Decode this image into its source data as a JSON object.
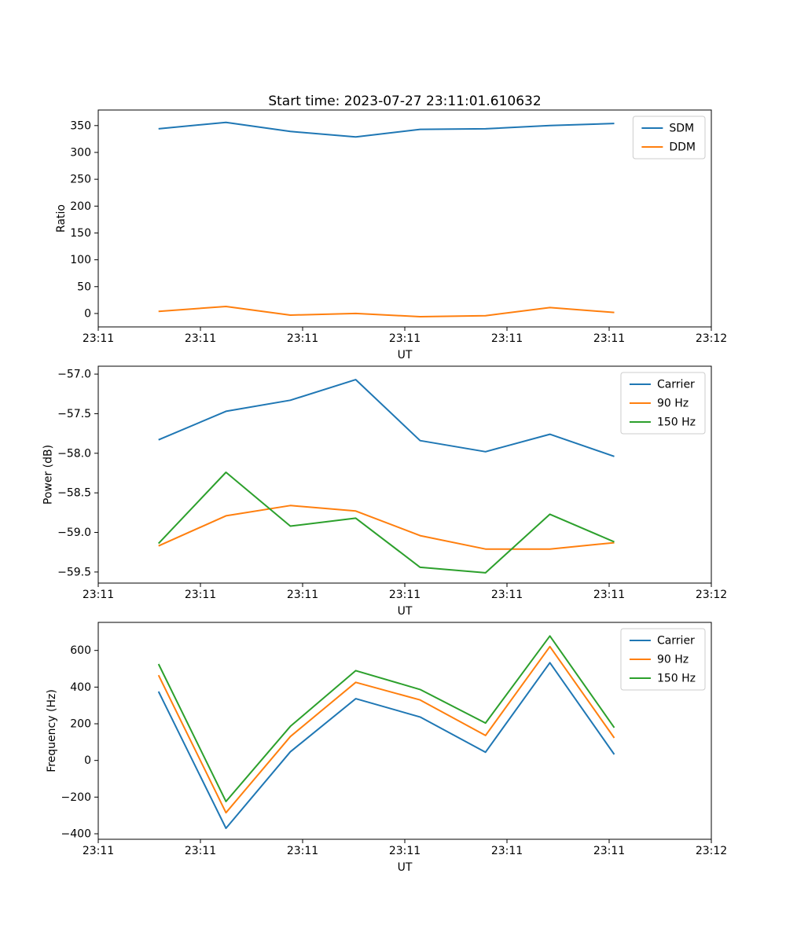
{
  "figure": {
    "title": "Start time: 2023-07-27 23:11:01.610632",
    "background": "#ffffff",
    "text_color": "#000000",
    "legend_edge_color": "#cccccc"
  },
  "chart_data": [
    {
      "type": "line",
      "title": "Start time: 2023-07-27 23:11:01.610632",
      "xlabel": "UT",
      "ylabel": "Ratio",
      "x_seconds": [
        5.9,
        12.5,
        18.8,
        25.2,
        31.5,
        37.9,
        44.2,
        50.5
      ],
      "xlim_seconds": [
        0,
        60
      ],
      "ylim": [
        -25,
        379
      ],
      "grid": false,
      "xticks": {
        "seconds": [
          0,
          10,
          20,
          30,
          40,
          50,
          60
        ],
        "labels": [
          "23:11",
          "23:11",
          "23:11",
          "23:11",
          "23:11",
          "23:11",
          "23:12"
        ]
      },
      "yticks": {
        "values": [
          0,
          50,
          100,
          150,
          200,
          250,
          300,
          350
        ],
        "labels": [
          "0",
          "50",
          "100",
          "150",
          "200",
          "250",
          "300",
          "350"
        ]
      },
      "legend": {
        "position": "upper right",
        "entries": [
          "SDM",
          "DDM"
        ]
      },
      "series": [
        {
          "name": "SDM",
          "color": "#1f77b4",
          "values": [
            344,
            356,
            339,
            329,
            343,
            344,
            350,
            354
          ]
        },
        {
          "name": "DDM",
          "color": "#ff7f0e",
          "values": [
            4,
            13,
            -3,
            0,
            -6,
            -4,
            11,
            2
          ]
        }
      ]
    },
    {
      "type": "line",
      "title": "",
      "xlabel": "UT",
      "ylabel": "Power (dB)",
      "x_seconds": [
        5.9,
        12.5,
        18.8,
        25.2,
        31.5,
        37.9,
        44.2,
        50.5
      ],
      "xlim_seconds": [
        0,
        60
      ],
      "ylim": [
        -59.64,
        -56.9
      ],
      "grid": false,
      "xticks": {
        "seconds": [
          0,
          10,
          20,
          30,
          40,
          50,
          60
        ],
        "labels": [
          "23:11",
          "23:11",
          "23:11",
          "23:11",
          "23:11",
          "23:11",
          "23:12"
        ]
      },
      "yticks": {
        "values": [
          -57.0,
          -57.5,
          -58.0,
          -58.5,
          -59.0,
          -59.5
        ],
        "labels": [
          "−57.0",
          "−57.5",
          "−58.0",
          "−58.5",
          "−59.0",
          "−59.5"
        ]
      },
      "legend": {
        "position": "upper right",
        "entries": [
          "Carrier",
          "90 Hz",
          "150 Hz"
        ]
      },
      "series": [
        {
          "name": "Carrier",
          "color": "#1f77b4",
          "values": [
            -57.83,
            -57.47,
            -57.33,
            -57.07,
            -57.84,
            -57.98,
            -57.76,
            -58.04
          ]
        },
        {
          "name": "90 Hz",
          "color": "#ff7f0e",
          "values": [
            -59.17,
            -58.79,
            -58.66,
            -58.73,
            -59.04,
            -59.21,
            -59.21,
            -59.13
          ]
        },
        {
          "name": "150 Hz",
          "color": "#2ca02c",
          "values": [
            -59.14,
            -58.24,
            -58.92,
            -58.82,
            -59.44,
            -59.51,
            -58.77,
            -59.12
          ]
        }
      ]
    },
    {
      "type": "line",
      "title": "",
      "xlabel": "UT",
      "ylabel": "Frequency (Hz)",
      "x_seconds": [
        5.9,
        12.5,
        18.8,
        25.2,
        31.5,
        37.9,
        44.2,
        50.5
      ],
      "xlim_seconds": [
        0,
        60
      ],
      "ylim": [
        -430,
        753
      ],
      "grid": false,
      "xticks": {
        "seconds": [
          0,
          10,
          20,
          30,
          40,
          50,
          60
        ],
        "labels": [
          "23:11",
          "23:11",
          "23:11",
          "23:11",
          "23:11",
          "23:11",
          "23:12"
        ]
      },
      "yticks": {
        "values": [
          -400,
          -200,
          0,
          200,
          400,
          600
        ],
        "labels": [
          "−400",
          "−200",
          "0",
          "200",
          "400",
          "600"
        ]
      },
      "legend": {
        "position": "upper right",
        "entries": [
          "Carrier",
          "90 Hz",
          "150 Hz"
        ]
      },
      "series": [
        {
          "name": "Carrier",
          "color": "#1f77b4",
          "values": [
            376,
            -370,
            47,
            337,
            237,
            45,
            533,
            33
          ]
        },
        {
          "name": "90 Hz",
          "color": "#ff7f0e",
          "values": [
            465,
            -285,
            130,
            426,
            330,
            136,
            621,
            123
          ]
        },
        {
          "name": "150 Hz",
          "color": "#2ca02c",
          "values": [
            526,
            -224,
            186,
            490,
            387,
            204,
            679,
            179
          ]
        }
      ]
    }
  ]
}
